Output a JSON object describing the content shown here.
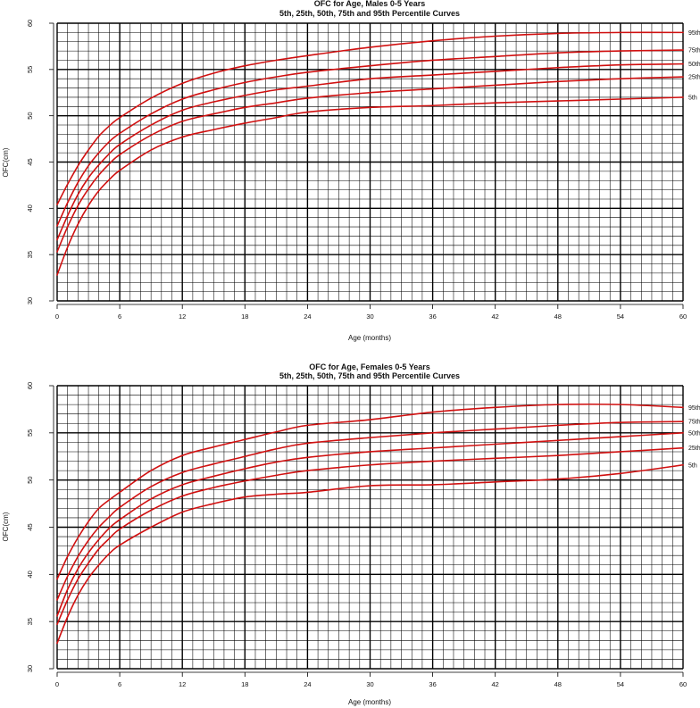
{
  "chart_data": [
    {
      "type": "line",
      "title": "OFC for Age, Males 0-5 Years",
      "subtitle": "5th, 25th, 50th, 75th and 95th Percentile Curves",
      "xlabel": "Age (months)",
      "ylabel": "OFC(cm)",
      "xlim": [
        0,
        60
      ],
      "ylim": [
        30,
        60
      ],
      "xticks": [
        0,
        6,
        12,
        18,
        24,
        30,
        36,
        42,
        48,
        54,
        60
      ],
      "yticks": [
        30,
        35,
        40,
        45,
        50,
        55,
        60
      ],
      "grid": true,
      "line_color": "#d01010",
      "x": [
        0,
        1,
        2,
        3,
        4,
        5,
        6,
        9,
        12,
        15,
        18,
        21,
        24,
        30,
        36,
        42,
        48,
        54,
        60
      ],
      "series": [
        {
          "name": "95th",
          "values": [
            40.4,
            42.6,
            44.6,
            46.3,
            47.8,
            48.9,
            49.8,
            51.9,
            53.5,
            54.6,
            55.4,
            56.0,
            56.5,
            57.4,
            58.1,
            58.6,
            58.9,
            59.0,
            59.0
          ]
        },
        {
          "name": "75th",
          "values": [
            38.1,
            40.6,
            42.8,
            44.6,
            46.0,
            47.2,
            48.1,
            50.2,
            51.8,
            52.8,
            53.6,
            54.2,
            54.7,
            55.4,
            56.0,
            56.4,
            56.8,
            57.0,
            57.1
          ]
        },
        {
          "name": "50th",
          "values": [
            36.6,
            39.2,
            41.5,
            43.3,
            44.7,
            45.9,
            46.9,
            49.0,
            50.6,
            51.5,
            52.2,
            52.8,
            53.2,
            54.0,
            54.4,
            54.8,
            55.2,
            55.5,
            55.6
          ]
        },
        {
          "name": "25th",
          "values": [
            35.3,
            38.0,
            40.3,
            42.1,
            43.6,
            44.8,
            45.8,
            47.9,
            49.4,
            50.2,
            50.9,
            51.4,
            51.9,
            52.5,
            52.9,
            53.3,
            53.7,
            54.0,
            54.2
          ]
        },
        {
          "name": "5th",
          "values": [
            32.8,
            35.8,
            38.3,
            40.3,
            41.9,
            43.1,
            44.1,
            46.3,
            47.7,
            48.5,
            49.2,
            49.8,
            50.4,
            50.9,
            51.1,
            51.4,
            51.6,
            51.8,
            52.0
          ]
        }
      ]
    },
    {
      "type": "line",
      "title": "OFC for Age, Females 0-5 Years",
      "subtitle": "5th, 25th, 50th, 75th and 95th Percentile Curves",
      "xlabel": "Age (months)",
      "ylabel": "OFC(cm)",
      "xlim": [
        0,
        60
      ],
      "ylim": [
        30,
        60
      ],
      "xticks": [
        0,
        6,
        12,
        18,
        24,
        30,
        36,
        42,
        48,
        54,
        60
      ],
      "yticks": [
        30,
        35,
        40,
        45,
        50,
        55,
        60
      ],
      "grid": true,
      "line_color": "#d01010",
      "x": [
        0,
        1,
        2,
        3,
        4,
        5,
        6,
        9,
        12,
        15,
        18,
        21,
        24,
        30,
        36,
        42,
        48,
        54,
        60
      ],
      "series": [
        {
          "name": "95th",
          "values": [
            39.5,
            41.9,
            43.9,
            45.6,
            47.0,
            47.9,
            48.7,
            51.0,
            52.6,
            53.5,
            54.3,
            55.1,
            55.8,
            56.4,
            57.2,
            57.7,
            58.0,
            58.0,
            57.7
          ]
        },
        {
          "name": "75th",
          "values": [
            37.3,
            39.8,
            41.9,
            43.6,
            45.0,
            46.1,
            47.1,
            49.3,
            50.8,
            51.7,
            52.5,
            53.3,
            53.9,
            54.5,
            55.0,
            55.4,
            55.8,
            56.1,
            56.2
          ]
        },
        {
          "name": "50th",
          "values": [
            35.6,
            38.4,
            40.6,
            42.3,
            43.7,
            44.9,
            45.8,
            48.0,
            49.5,
            50.4,
            51.2,
            51.9,
            52.4,
            53.0,
            53.4,
            53.8,
            54.2,
            54.6,
            55.0
          ]
        },
        {
          "name": "25th",
          "values": [
            34.7,
            37.3,
            39.5,
            41.2,
            42.7,
            43.8,
            44.8,
            46.8,
            48.3,
            49.2,
            49.9,
            50.5,
            51.0,
            51.6,
            52.0,
            52.3,
            52.6,
            53.0,
            53.4
          ]
        },
        {
          "name": "5th",
          "values": [
            32.7,
            35.5,
            37.8,
            39.6,
            41.0,
            42.2,
            43.1,
            45.0,
            46.6,
            47.5,
            48.2,
            48.5,
            48.7,
            49.4,
            49.5,
            49.8,
            50.1,
            50.7,
            51.6
          ]
        }
      ]
    }
  ]
}
